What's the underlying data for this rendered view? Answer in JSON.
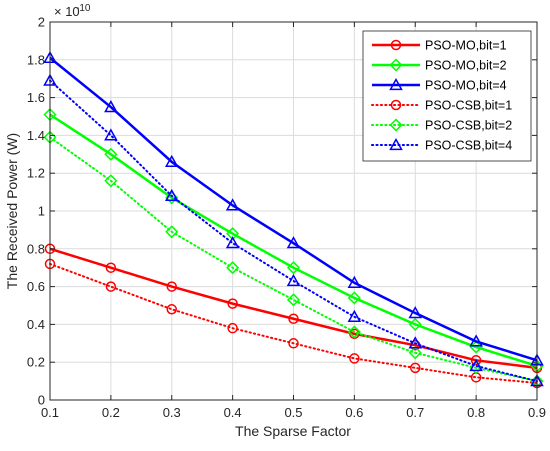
{
  "chart_data": {
    "type": "line",
    "xlabel": "The Sparse Factor",
    "ylabel": "The Received Power (W)",
    "y_exponent_label": "× 10",
    "y_exponent_power": "-10",
    "x": [
      0.1,
      0.2,
      0.3,
      0.4,
      0.5,
      0.6,
      0.7,
      0.8,
      0.9
    ],
    "xlim": [
      0.1,
      0.9
    ],
    "ylim": [
      0,
      2
    ],
    "x_ticks": [
      "0.1",
      "0.2",
      "0.3",
      "0.4",
      "0.5",
      "0.6",
      "0.7",
      "0.8",
      "0.9"
    ],
    "y_ticks": [
      "0",
      "0.2",
      "0.4",
      "0.6",
      "0.8",
      "1",
      "1.2",
      "1.4",
      "1.6",
      "1.8",
      "2"
    ],
    "grid": true,
    "legend_position": "top-right",
    "series": [
      {
        "name": "PSO-MO,bit=1",
        "color": "#ff0000",
        "style": "solid",
        "marker": "circle",
        "values": [
          0.8,
          0.7,
          0.6,
          0.51,
          0.43,
          0.35,
          0.29,
          0.21,
          0.17
        ]
      },
      {
        "name": "PSO-MO,bit=2",
        "color": "#00ff00",
        "style": "solid",
        "marker": "diamond",
        "values": [
          1.51,
          1.3,
          1.07,
          0.88,
          0.7,
          0.54,
          0.4,
          0.28,
          0.18
        ]
      },
      {
        "name": "PSO-MO,bit=4",
        "color": "#0000ff",
        "style": "solid",
        "marker": "triangle",
        "values": [
          1.81,
          1.55,
          1.26,
          1.03,
          0.83,
          0.62,
          0.46,
          0.31,
          0.21
        ]
      },
      {
        "name": "PSO-CSB,bit=1",
        "color": "#ff0000",
        "style": "dotted",
        "marker": "circle",
        "values": [
          0.72,
          0.6,
          0.48,
          0.38,
          0.3,
          0.22,
          0.17,
          0.12,
          0.09
        ]
      },
      {
        "name": "PSO-CSB,bit=2",
        "color": "#00ff00",
        "style": "dotted",
        "marker": "diamond",
        "values": [
          1.39,
          1.16,
          0.89,
          0.7,
          0.53,
          0.36,
          0.25,
          0.17,
          0.1
        ]
      },
      {
        "name": "PSO-CSB,bit=4",
        "color": "#0000ff",
        "style": "dotted",
        "marker": "triangle",
        "values": [
          1.69,
          1.4,
          1.08,
          0.83,
          0.63,
          0.44,
          0.3,
          0.18,
          0.1
        ]
      }
    ]
  }
}
